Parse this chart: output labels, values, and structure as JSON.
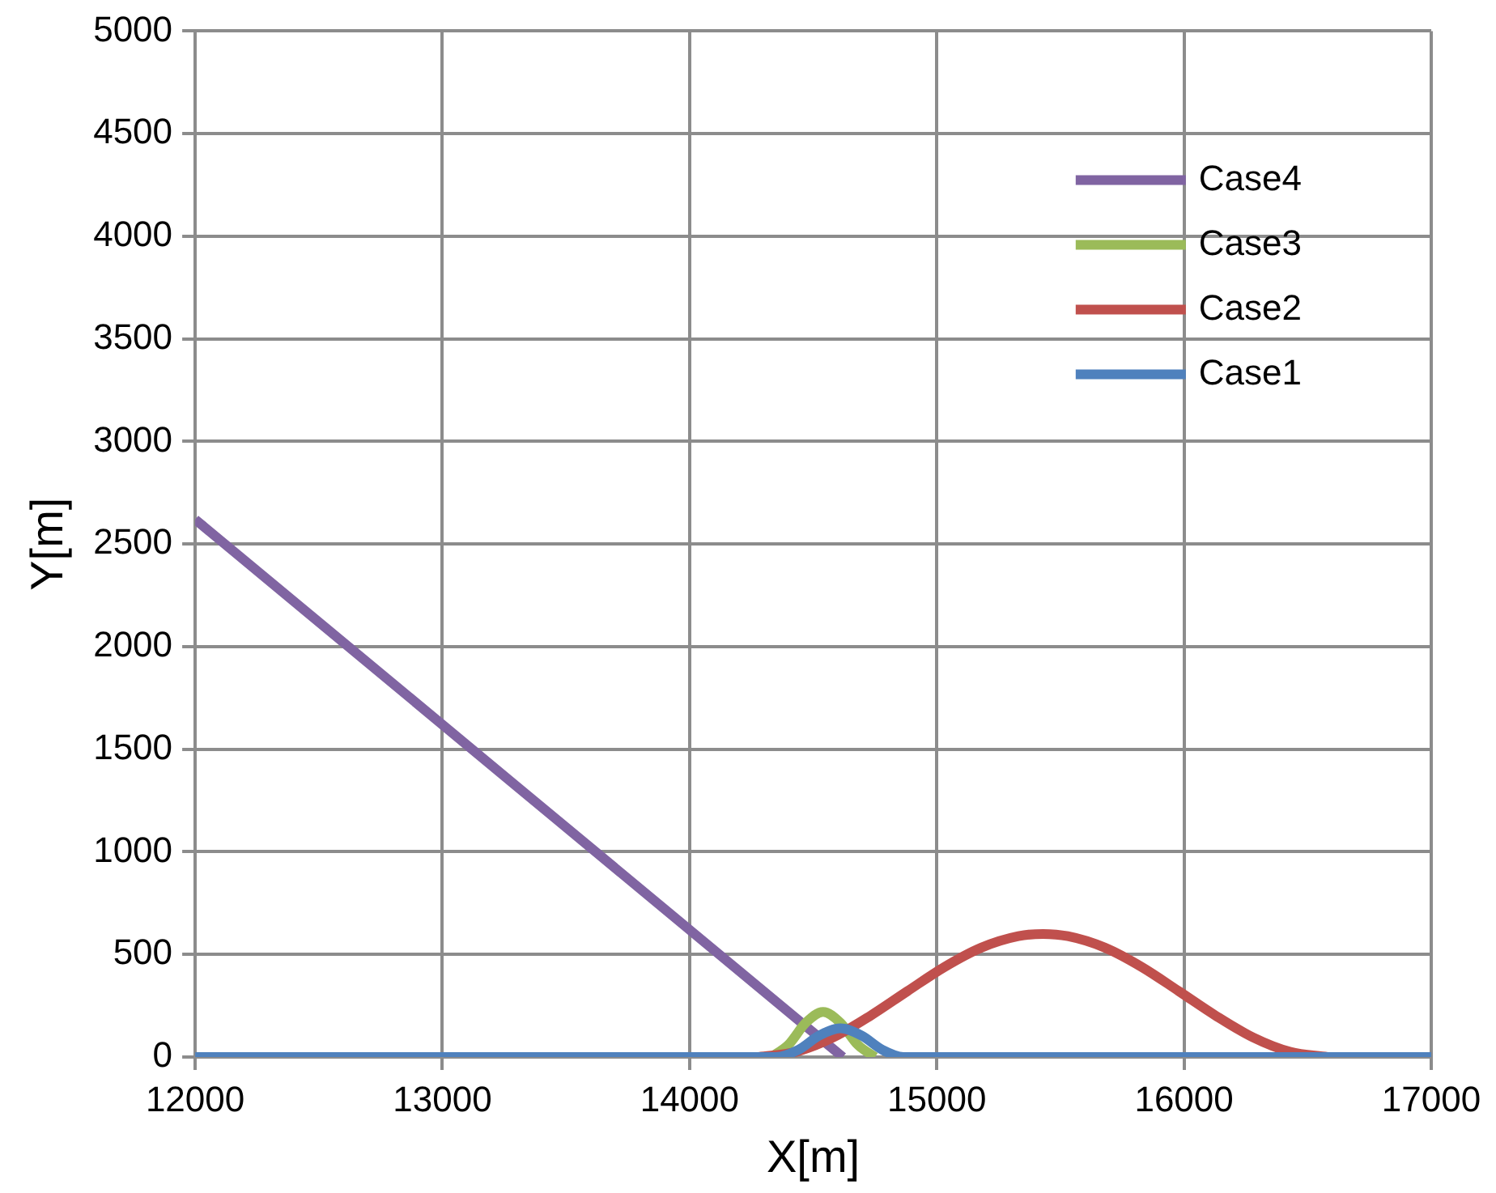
{
  "chart_data": {
    "type": "line",
    "xlabel": "X[m]",
    "ylabel": "Y[m]",
    "xlim": [
      12000,
      17000
    ],
    "xticks": [
      12000,
      13000,
      14000,
      15000,
      16000,
      17000
    ],
    "ylim": [
      0,
      5000
    ],
    "yticks": [
      0,
      500,
      1000,
      1500,
      2000,
      2500,
      3000,
      3500,
      4000,
      4500,
      5000
    ],
    "grid": true,
    "legend": "top right",
    "marker": "none",
    "line_style": "solid",
    "series": [
      {
        "name": "Case4",
        "color": "#8064a2",
        "x": [
          12000,
          14620
        ],
        "values": [
          2620,
          0
        ]
      },
      {
        "name": "Case3",
        "color": "#9bbb59",
        "x": [
          14330,
          14400,
          14470,
          14540,
          14610,
          14680,
          14750
        ],
        "values": [
          0,
          60,
          167,
          220,
          167,
          60,
          0
        ]
      },
      {
        "name": "Case2",
        "color": "#c0504d",
        "x": [
          14280,
          14430,
          14580,
          14730,
          14880,
          15030,
          15180,
          15330,
          15430,
          15530,
          15680,
          15830,
          15980,
          16130,
          16280,
          16430,
          16580
        ],
        "values": [
          0,
          25,
          95,
          200,
          320,
          438,
          533,
          589,
          600,
          589,
          533,
          438,
          320,
          200,
          95,
          25,
          0
        ]
      },
      {
        "name": "Case1",
        "color": "#4f81bd",
        "x": [
          12000,
          14350,
          14440,
          14525,
          14610,
          14695,
          14780,
          14865,
          17000
        ],
        "values": [
          0,
          0,
          35,
          105,
          140,
          105,
          35,
          0,
          0
        ]
      }
    ]
  }
}
